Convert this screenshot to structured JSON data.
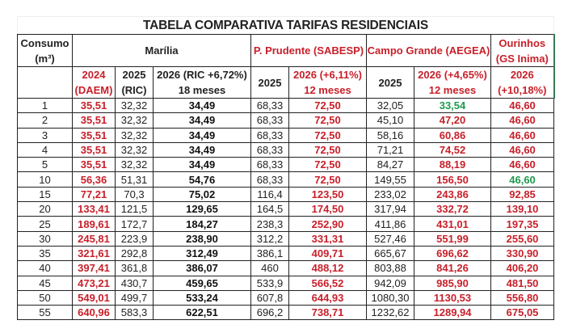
{
  "title": "TABELA COMPARATIVA TARIFAS RESIDENCIAIS",
  "header_row1": {
    "consumo": "Consumo",
    "consumo_unit": "(m³)",
    "marilia": "Marília",
    "prudente": "P. Prudente (SABESP)",
    "campo_grande": "Campo Grande (AEGEA)",
    "ourinhos_line1": "Ourinhos",
    "ourinhos_line2": "(GS Inima)"
  },
  "header_row2": {
    "m2024_line1": "2024",
    "m2024_line2": "(DAEM)",
    "m2025_line1": "2025",
    "m2025_line2": "(RIC)",
    "m2026_line1": "2026 (RIC +6,72%)",
    "m2026_line2": "18 meses",
    "p2025": "2025",
    "p2026_line1": "2026 (+6,11%)",
    "p2026_line2": "12 meses",
    "c2025": "2025",
    "c2026_line1": "2026 (+4,65%)",
    "c2026_line2": "12 meses",
    "o2026_line1": "2026",
    "o2026_line2": "(+10,18%)"
  },
  "colors": {
    "red": "#c8202a",
    "green": "#1d9a4e"
  },
  "rows": [
    [
      "1",
      "35,51",
      "32,32",
      "34,49",
      "68,33",
      "72,50",
      "32,05",
      "33,54",
      "46,60"
    ],
    [
      "2",
      "35,51",
      "32,32",
      "34,49",
      "68,33",
      "72,50",
      "45,10",
      "47,20",
      "46,60"
    ],
    [
      "3",
      "35,51",
      "32,32",
      "34,49",
      "68,33",
      "72,50",
      "58,16",
      "60,86",
      "46,60"
    ],
    [
      "4",
      "35,51",
      "32,32",
      "34,49",
      "68,33",
      "72,50",
      "71,21",
      "74,52",
      "46,60"
    ],
    [
      "5",
      "35,51",
      "32,32",
      "34,49",
      "68,33",
      "72,50",
      "84,27",
      "88,19",
      "46,60"
    ],
    [
      "10",
      "56,36",
      "51,31",
      "54,76",
      "68,33",
      "72,50",
      "149,55",
      "156,50",
      "46,60"
    ],
    [
      "15",
      "77,21",
      "70,3",
      "75,02",
      "116,4",
      "123,50",
      "233,02",
      "243,86",
      "92,85"
    ],
    [
      "20",
      "133,41",
      "121,5",
      "129,65",
      "164,5",
      "174,50",
      "317,94",
      "332,72",
      "139,10"
    ],
    [
      "25",
      "189,61",
      "172,7",
      "184,27",
      "238,3",
      "252,90",
      "411,86",
      "431,01",
      "197,35"
    ],
    [
      "30",
      "245,81",
      "223,9",
      "238,90",
      "312,2",
      "331,31",
      "527,46",
      "551,99",
      "255,60"
    ],
    [
      "35",
      "321,61",
      "292,8",
      "312,49",
      "386,1",
      "409,71",
      "665,67",
      "696,62",
      "330,90"
    ],
    [
      "40",
      "397,41",
      "361,8",
      "386,07",
      "460",
      "488,12",
      "803,88",
      "841,26",
      "406,20"
    ],
    [
      "45",
      "473,21",
      "430,7",
      "459,65",
      "533,9",
      "566,52",
      "942,09",
      "985,90",
      "481,50"
    ],
    [
      "50",
      "549,01",
      "499,7",
      "533,24",
      "607,8",
      "644,93",
      "1080,30",
      "1130,53",
      "556,80"
    ],
    [
      "55",
      "640,96",
      "583,3",
      "622,51",
      "696,2",
      "738,71",
      "1232,62",
      "1289,94",
      "675,05"
    ]
  ],
  "green_cells": [
    [
      0,
      7
    ],
    [
      5,
      8
    ]
  ]
}
